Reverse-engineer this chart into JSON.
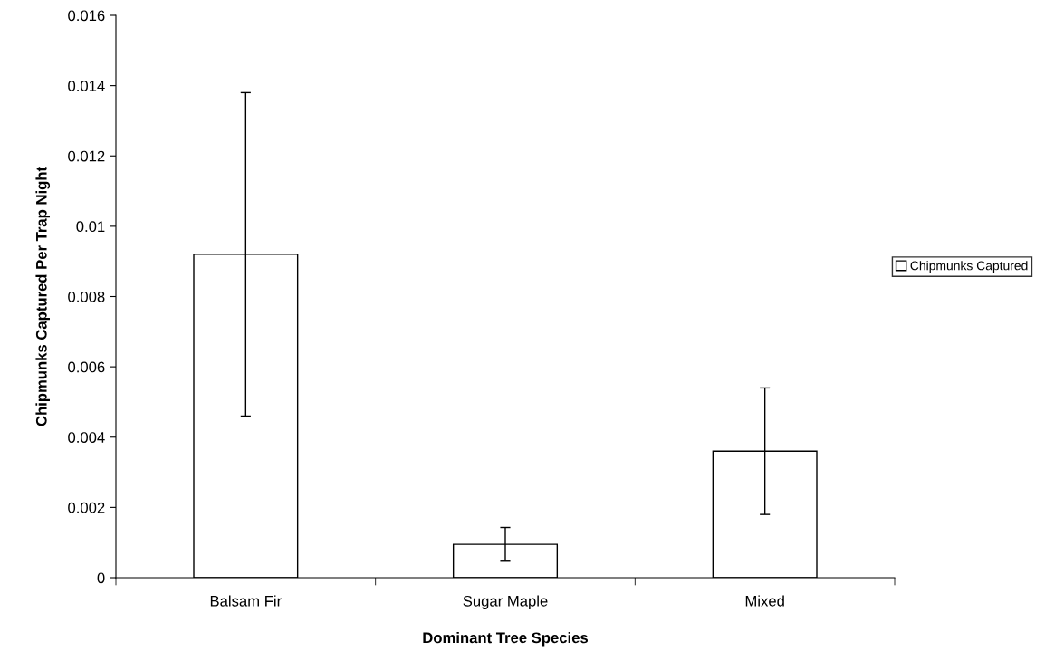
{
  "chart_data": {
    "type": "bar",
    "xlabel": "Dominant Tree Species",
    "ylabel": "Chipmunks Captured Per Trap Night",
    "categories": [
      "Balsam Fir",
      "Sugar Maple",
      "Mixed"
    ],
    "series": [
      {
        "name": "Chipmunks Captured",
        "color": "#ffffff",
        "values": [
          0.0092,
          0.00095,
          0.0036
        ],
        "errors": [
          0.0046,
          0.00048,
          0.0018
        ]
      }
    ],
    "ylim": [
      0,
      0.016
    ],
    "yticks": [
      0,
      {
        "value": 0.002,
        "label": "0.002"
      },
      {
        "value": 0.004,
        "label": "0.004"
      },
      {
        "value": 0.006,
        "label": "0.006"
      },
      {
        "value": 0.008,
        "label": "0.008"
      },
      {
        "value": 0.01,
        "label": "0.01"
      },
      {
        "value": 0.012,
        "label": "0.012"
      },
      {
        "value": 0.014,
        "label": "0.014"
      },
      {
        "value": 0.016,
        "label": "0.016"
      }
    ],
    "grid": false,
    "legend": "right"
  }
}
